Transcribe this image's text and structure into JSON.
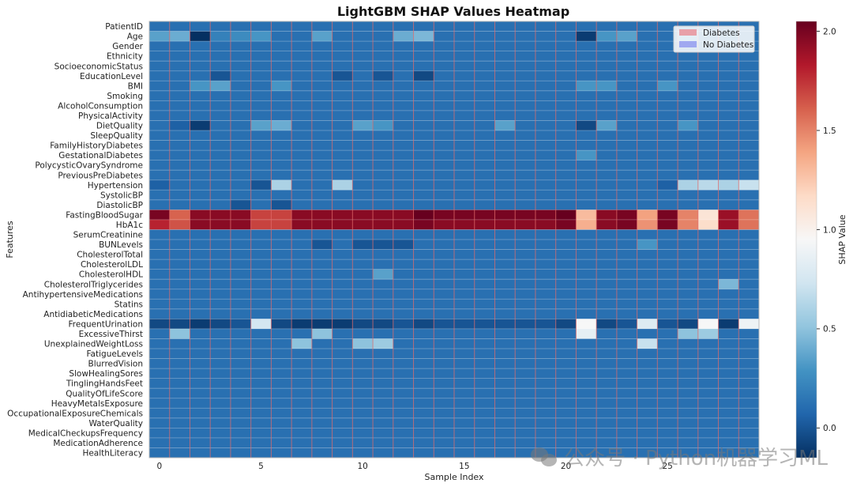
{
  "chart_data": {
    "type": "heatmap",
    "title": "LightGBM SHAP Values Heatmap",
    "xlabel": "Sample Index",
    "ylabel": "Features",
    "colorbar_label": "SHAP Value",
    "colormap": "RdBu_r",
    "vmin": -0.15,
    "vmax": 2.05,
    "n_samples": 30,
    "x_ticks": [
      0,
      5,
      10,
      15,
      20,
      25
    ],
    "colorbar_ticks": [
      0.0,
      0.5,
      1.0,
      1.5,
      2.0
    ],
    "colorbar_tick_labels": [
      "0.0",
      "0.5",
      "1.0",
      "1.5",
      "2.0"
    ],
    "features": [
      "PatientID",
      "Age",
      "Gender",
      "Ethnicity",
      "SocioeconomicStatus",
      "EducationLevel",
      "BMI",
      "Smoking",
      "AlcoholConsumption",
      "PhysicalActivity",
      "DietQuality",
      "SleepQuality",
      "FamilyHistoryDiabetes",
      "GestationalDiabetes",
      "PolycysticOvarySyndrome",
      "PreviousPreDiabetes",
      "Hypertension",
      "SystolicBP",
      "DiastolicBP",
      "FastingBloodSugar",
      "HbA1c",
      "SerumCreatinine",
      "BUNLevels",
      "CholesterolTotal",
      "CholesterolLDL",
      "CholesterolHDL",
      "CholesterolTriglycerides",
      "AntihypertensiveMedications",
      "Statins",
      "AntidiabeticMedications",
      "FrequentUrination",
      "ExcessiveThirst",
      "UnexplainedWeightLoss",
      "FatigueLevels",
      "BlurredVision",
      "SlowHealingSores",
      "TinglingHandsFeet",
      "QualityOfLifeScore",
      "HeavyMetalsExposure",
      "OccupationalExposureChemicals",
      "WaterQuality",
      "MedicalCheckupsFrequency",
      "MedicationAdherence",
      "HealthLiteracy"
    ],
    "baseline": 0.12,
    "values_sparse": [
      {
        "feature": "Age",
        "overrides": {
          "0": 0.35,
          "1": 0.4,
          "2": -0.15,
          "3": 0.2,
          "4": 0.25,
          "5": 0.3,
          "8": 0.35,
          "12": 0.4,
          "13": 0.45,
          "21": -0.1,
          "22": 0.3,
          "23": 0.35,
          "26": 0.3
        }
      },
      {
        "feature": "EducationLevel",
        "overrides": {
          "3": 0.0,
          "9": 0.0,
          "11": 0.0,
          "13": -0.05
        }
      },
      {
        "feature": "BMI",
        "overrides": {
          "2": 0.3,
          "3": 0.35,
          "6": 0.3,
          "21": 0.3,
          "22": 0.3,
          "25": 0.3
        }
      },
      {
        "feature": "DietQuality",
        "overrides": {
          "1": 0.05,
          "2": -0.1,
          "5": 0.35,
          "6": 0.4,
          "10": 0.35,
          "11": 0.3,
          "17": 0.35,
          "21": -0.05,
          "22": 0.35,
          "26": 0.3
        }
      },
      {
        "feature": "GestationalDiabetes",
        "overrides": {
          "21": 0.3
        }
      },
      {
        "feature": "Hypertension",
        "overrides": {
          "0": 0.05,
          "5": 0.0,
          "6": 0.6,
          "9": 0.6,
          "25": 0.05,
          "26": 0.6,
          "27": 0.65,
          "28": 0.6,
          "29": 0.7
        }
      },
      {
        "feature": "DiastolicBP",
        "overrides": {
          "4": 0.0,
          "6": 0.0
        }
      },
      {
        "feature": "FastingBloodSugar",
        "values": [
          2.0,
          1.6,
          1.95,
          1.95,
          1.95,
          1.7,
          1.7,
          1.95,
          1.95,
          1.95,
          1.95,
          1.95,
          1.95,
          2.05,
          2.0,
          2.0,
          2.0,
          2.0,
          2.0,
          2.0,
          2.05,
          1.3,
          1.95,
          2.0,
          1.4,
          2.0,
          1.5,
          1.1,
          1.9,
          1.55
        ]
      },
      {
        "feature": "HbA1c",
        "values": [
          1.8,
          1.65,
          1.95,
          1.95,
          1.95,
          1.7,
          1.7,
          1.95,
          1.95,
          1.95,
          1.95,
          1.95,
          1.95,
          2.0,
          1.95,
          1.95,
          1.95,
          1.95,
          1.95,
          1.95,
          2.0,
          1.35,
          1.95,
          2.0,
          1.45,
          2.0,
          1.5,
          1.15,
          1.9,
          1.55
        ]
      },
      {
        "feature": "BUNLevels",
        "overrides": {
          "8": 0.0,
          "10": 0.0,
          "11": 0.0,
          "12": 0.0,
          "24": 0.3
        }
      },
      {
        "feature": "CholesterolHDL",
        "overrides": {
          "11": 0.35
        }
      },
      {
        "feature": "CholesterolTriglycerides",
        "overrides": {
          "28": 0.45
        }
      },
      {
        "feature": "FrequentUrination",
        "values": [
          -0.05,
          -0.05,
          -0.1,
          -0.05,
          0.0,
          0.75,
          -0.05,
          -0.1,
          -0.1,
          -0.1,
          -0.05,
          -0.05,
          0.0,
          -0.05,
          0.0,
          0.0,
          0.0,
          0.0,
          0.0,
          0.0,
          -0.05,
          0.95,
          -0.05,
          0.0,
          0.8,
          0.0,
          -0.05,
          0.95,
          -0.1,
          0.9
        ]
      },
      {
        "feature": "ExcessiveThirst",
        "overrides": {
          "1": 0.5,
          "8": 0.5,
          "21": 0.85,
          "26": 0.5,
          "27": 0.55
        }
      },
      {
        "feature": "UnexplainedWeightLoss",
        "overrides": {
          "7": 0.5,
          "10": 0.5,
          "11": 0.55,
          "24": 0.7
        }
      }
    ]
  },
  "legend": {
    "items": [
      {
        "label": "Diabetes",
        "color": "#e8a0a8"
      },
      {
        "label": "No Diabetes",
        "color": "#a0a8f0"
      }
    ]
  },
  "vertical_line_color": "#e06b6b",
  "watermark": "公众号 · Python机器学习ML"
}
